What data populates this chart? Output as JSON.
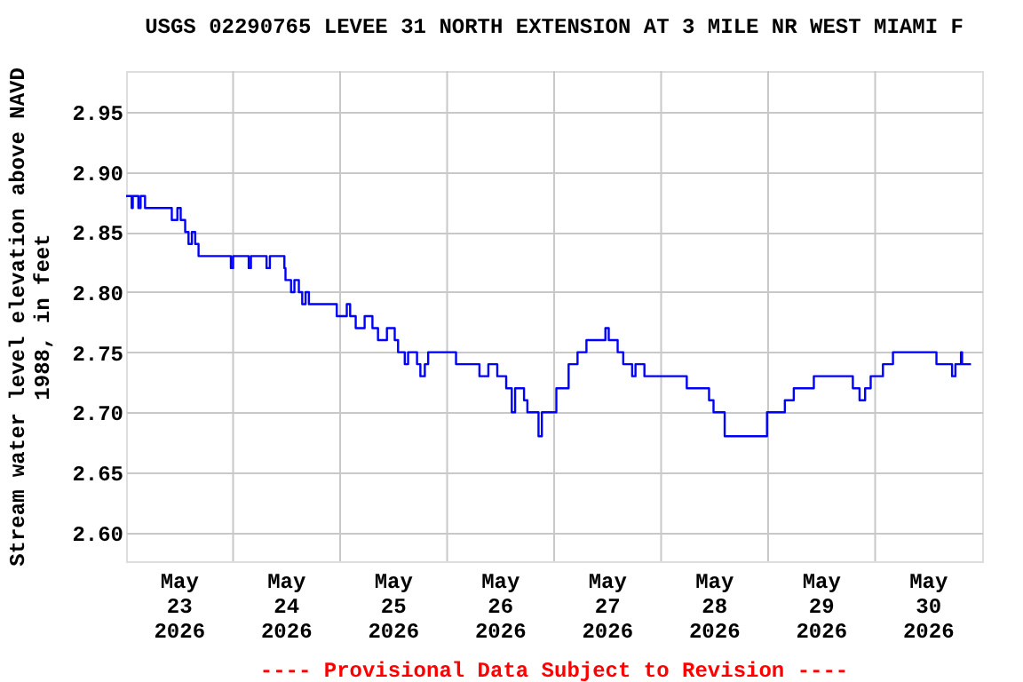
{
  "chart_data": {
    "type": "step",
    "title": "USGS 02290765 LEVEE 31 NORTH EXTENSION AT 3 MILE NR WEST MIAMI F",
    "ylabel": "Stream water level elevation above NAVD\n1988, in feet",
    "annotations": [
      "---- Provisional Data Subject to Revision ----"
    ],
    "x": [
      "2026-05-23T00:00",
      "2026-05-23T01:15",
      "2026-05-23T01:30",
      "2026-05-23T02:45",
      "2026-05-23T03:15",
      "2026-05-23T04:15",
      "2026-05-23T10:15",
      "2026-05-23T11:30",
      "2026-05-23T12:15",
      "2026-05-23T13:15",
      "2026-05-23T14:00",
      "2026-05-23T14:45",
      "2026-05-23T15:30",
      "2026-05-23T16:15",
      "2026-05-23T17:00",
      "2026-05-23T23:30",
      "2026-05-24T00:00",
      "2026-05-24T03:30",
      "2026-05-24T04:00",
      "2026-05-24T07:30",
      "2026-05-24T08:15",
      "2026-05-24T11:30",
      "2026-05-24T11:45",
      "2026-05-24T13:00",
      "2026-05-24T13:45",
      "2026-05-24T14:45",
      "2026-05-24T15:30",
      "2026-05-24T16:15",
      "2026-05-24T17:00",
      "2026-05-24T23:15",
      "2026-05-25T01:30",
      "2026-05-25T02:15",
      "2026-05-25T03:30",
      "2026-05-25T05:30",
      "2026-05-25T07:15",
      "2026-05-25T08:30",
      "2026-05-25T10:30",
      "2026-05-25T12:15",
      "2026-05-25T13:00",
      "2026-05-25T14:30",
      "2026-05-25T15:15",
      "2026-05-25T17:15",
      "2026-05-25T18:00",
      "2026-05-25T19:00",
      "2026-05-25T19:45",
      "2026-05-26T02:00",
      "2026-05-26T06:00",
      "2026-05-26T07:15",
      "2026-05-26T09:15",
      "2026-05-26T11:15",
      "2026-05-26T13:15",
      "2026-05-26T14:30",
      "2026-05-26T15:15",
      "2026-05-26T17:15",
      "2026-05-26T18:00",
      "2026-05-26T20:30",
      "2026-05-26T21:15",
      "2026-05-27T00:30",
      "2026-05-27T03:15",
      "2026-05-27T05:15",
      "2026-05-27T07:15",
      "2026-05-27T11:30",
      "2026-05-27T12:15",
      "2026-05-27T14:15",
      "2026-05-27T15:30",
      "2026-05-27T17:30",
      "2026-05-27T18:15",
      "2026-05-27T20:15",
      "2026-05-28T05:45",
      "2026-05-28T10:45",
      "2026-05-28T11:45",
      "2026-05-28T14:15",
      "2026-05-28T23:45",
      "2026-05-29T03:45",
      "2026-05-29T05:45",
      "2026-05-29T10:15",
      "2026-05-29T19:00",
      "2026-05-29T20:30",
      "2026-05-29T21:45",
      "2026-05-29T23:00",
      "2026-05-30T01:45",
      "2026-05-30T04:00",
      "2026-05-30T13:45",
      "2026-05-30T17:15",
      "2026-05-30T18:00",
      "2026-05-30T19:15",
      "2026-05-30T19:30",
      "2026-05-30T21:30"
    ],
    "series": [
      {
        "color": "#0000ff",
        "values": [
          2.88,
          2.87,
          2.88,
          2.87,
          2.88,
          2.87,
          2.86,
          2.87,
          2.86,
          2.85,
          2.84,
          2.85,
          2.84,
          2.83,
          2.83,
          2.82,
          2.83,
          2.82,
          2.83,
          2.82,
          2.83,
          2.82,
          2.81,
          2.8,
          2.81,
          2.8,
          2.79,
          2.8,
          2.79,
          2.78,
          2.79,
          2.78,
          2.77,
          2.78,
          2.77,
          2.76,
          2.77,
          2.76,
          2.75,
          2.74,
          2.75,
          2.74,
          2.73,
          2.74,
          2.75,
          2.74,
          2.74,
          2.73,
          2.74,
          2.73,
          2.72,
          2.7,
          2.72,
          2.71,
          2.7,
          2.68,
          2.7,
          2.72,
          2.74,
          2.75,
          2.76,
          2.77,
          2.76,
          2.75,
          2.74,
          2.73,
          2.74,
          2.73,
          2.72,
          2.71,
          2.7,
          2.68,
          2.7,
          2.71,
          2.72,
          2.73,
          2.72,
          2.71,
          2.72,
          2.73,
          2.74,
          2.75,
          2.74,
          2.73,
          2.74,
          2.75,
          2.74,
          2.74
        ]
      }
    ],
    "xlim": [
      "2026-05-23T00:00",
      "2026-05-31T00:00"
    ],
    "xticks": [
      {
        "value": "2026-05-23T12:00",
        "label": "May\n23\n2026"
      },
      {
        "value": "2026-05-24T12:00",
        "label": "May\n24\n2026"
      },
      {
        "value": "2026-05-25T12:00",
        "label": "May\n25\n2026"
      },
      {
        "value": "2026-05-26T12:00",
        "label": "May\n26\n2026"
      },
      {
        "value": "2026-05-27T12:00",
        "label": "May\n27\n2026"
      },
      {
        "value": "2026-05-28T12:00",
        "label": "May\n28\n2026"
      },
      {
        "value": "2026-05-29T12:00",
        "label": "May\n29\n2026"
      },
      {
        "value": "2026-05-30T12:00",
        "label": "May\n30\n2026"
      },
      {
        "value": "2026-05-24T00:00",
        "label": null
      },
      {
        "value": "2026-05-25T00:00",
        "label": null
      },
      {
        "value": "2026-05-26T00:00",
        "label": null
      },
      {
        "value": "2026-05-27T00:00",
        "label": null
      },
      {
        "value": "2026-05-28T00:00",
        "label": null
      },
      {
        "value": "2026-05-29T00:00",
        "label": null
      },
      {
        "value": "2026-05-30T00:00",
        "label": null
      }
    ],
    "ylim": [
      2.576,
      2.984
    ],
    "yticks": [
      {
        "value": 2.6,
        "label": "2.60"
      },
      {
        "value": 2.65,
        "label": "2.65"
      },
      {
        "value": 2.7,
        "label": "2.70"
      },
      {
        "value": 2.75,
        "label": "2.75"
      },
      {
        "value": 2.8,
        "label": "2.80"
      },
      {
        "value": 2.85,
        "label": "2.85"
      },
      {
        "value": 2.9,
        "label": "2.90"
      },
      {
        "value": 2.95,
        "label": "2.95"
      }
    ],
    "grid": true,
    "legend": false,
    "marker": "none",
    "line_style": "solid"
  }
}
